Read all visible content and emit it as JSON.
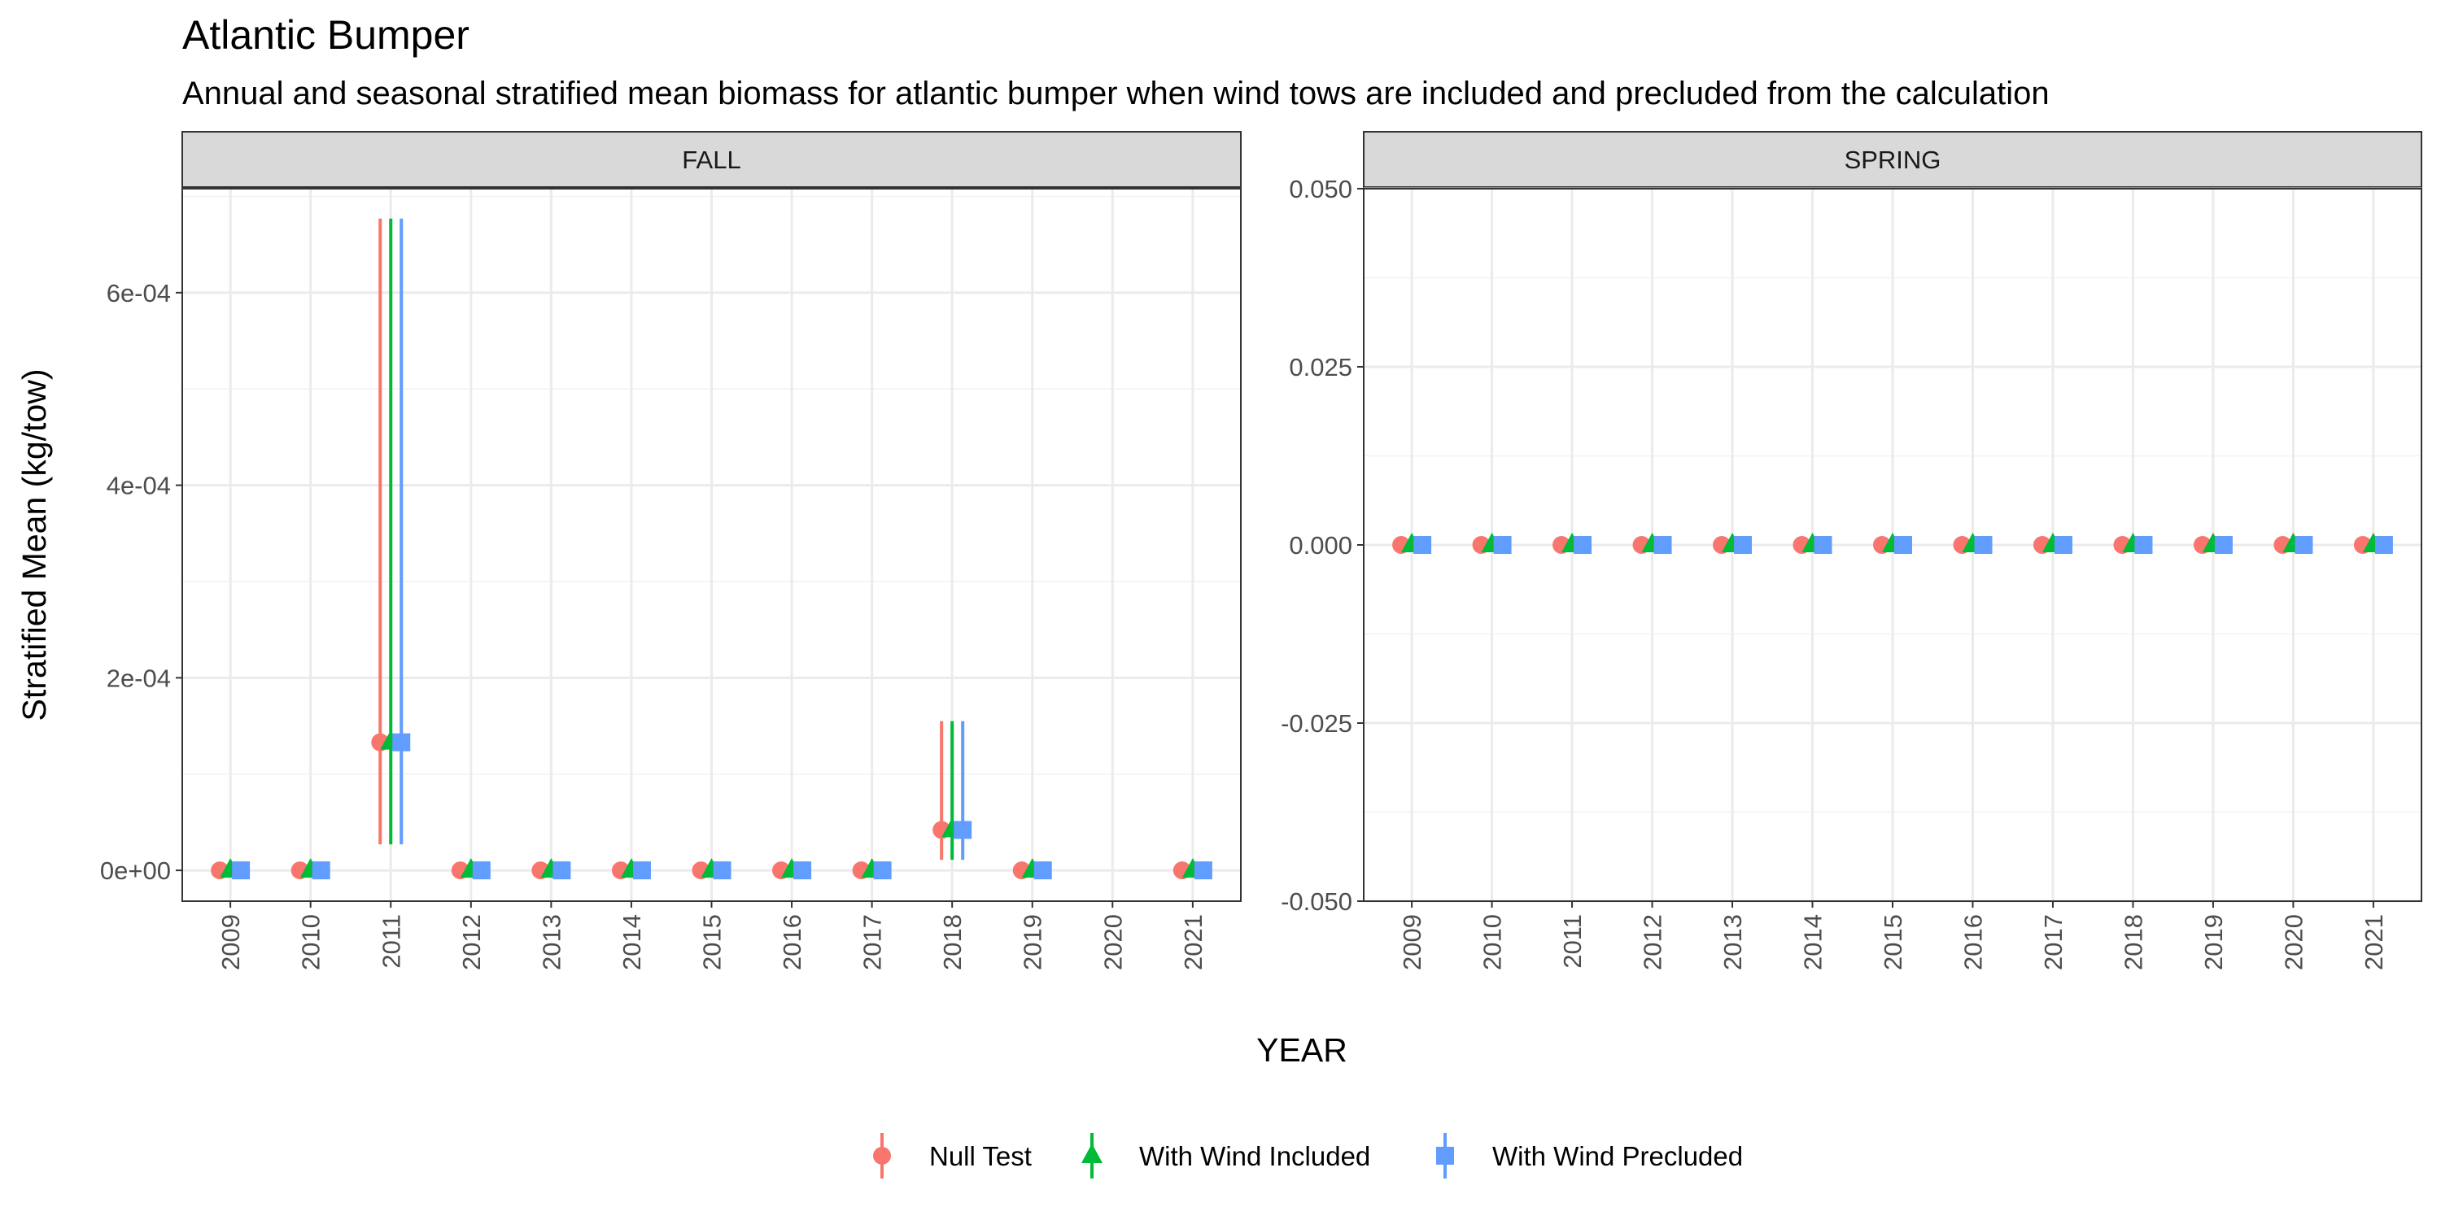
{
  "title": "Atlantic Bumper",
  "subtitle": "Annual and seasonal stratified mean biomass for atlantic bumper when wind tows are included and precluded from the calculation",
  "chart_data": {
    "type": "scatter",
    "xlabel": "YEAR",
    "ylabel": "Stratified Mean (kg/tow)",
    "categories": [
      "2009",
      "2010",
      "2011",
      "2012",
      "2013",
      "2014",
      "2015",
      "2016",
      "2017",
      "2018",
      "2019",
      "2020",
      "2021"
    ],
    "colors": {
      "Null Test": "#F8766D",
      "With Wind Included": "#00BA38",
      "With Wind Precluded": "#619CFF"
    },
    "legend": {
      "position": "bottom",
      "entries": [
        {
          "name": "Null Test",
          "shape": "circle"
        },
        {
          "name": "With Wind Included",
          "shape": "triangle"
        },
        {
          "name": "With Wind Precluded",
          "shape": "square"
        }
      ]
    },
    "grid": true,
    "error_bars": true,
    "facets": [
      {
        "label": "FALL",
        "ylim": [
          -3.2e-05,
          0.000708
        ],
        "yticks": [
          0,
          0.0002,
          0.0004,
          0.0006
        ],
        "ytick_labels": [
          "0e+00",
          "2e-04",
          "4e-04",
          "6e-04"
        ],
        "series": [
          {
            "name": "Null Test",
            "points": [
              {
                "x": "2009",
                "y": 0
              },
              {
                "x": "2010",
                "y": 0
              },
              {
                "x": "2011",
                "y": 0.000133,
                "lo": 2.7e-05,
                "hi": 0.000677
              },
              {
                "x": "2012",
                "y": 0
              },
              {
                "x": "2013",
                "y": 0
              },
              {
                "x": "2014",
                "y": 0
              },
              {
                "x": "2015",
                "y": 0
              },
              {
                "x": "2016",
                "y": 0
              },
              {
                "x": "2017",
                "y": 0
              },
              {
                "x": "2018",
                "y": 4.2e-05,
                "lo": 1.1e-05,
                "hi": 0.000155
              },
              {
                "x": "2019",
                "y": 0
              },
              {
                "x": "2021",
                "y": 0
              }
            ]
          },
          {
            "name": "With Wind Included",
            "points": [
              {
                "x": "2009",
                "y": 0
              },
              {
                "x": "2010",
                "y": 0
              },
              {
                "x": "2011",
                "y": 0.000133,
                "lo": 2.7e-05,
                "hi": 0.000677
              },
              {
                "x": "2012",
                "y": 0
              },
              {
                "x": "2013",
                "y": 0
              },
              {
                "x": "2014",
                "y": 0
              },
              {
                "x": "2015",
                "y": 0
              },
              {
                "x": "2016",
                "y": 0
              },
              {
                "x": "2017",
                "y": 0
              },
              {
                "x": "2018",
                "y": 4.2e-05,
                "lo": 1.1e-05,
                "hi": 0.000155
              },
              {
                "x": "2019",
                "y": 0
              },
              {
                "x": "2021",
                "y": 0
              }
            ]
          },
          {
            "name": "With Wind Precluded",
            "points": [
              {
                "x": "2009",
                "y": 0
              },
              {
                "x": "2010",
                "y": 0
              },
              {
                "x": "2011",
                "y": 0.000133,
                "lo": 2.7e-05,
                "hi": 0.000677
              },
              {
                "x": "2012",
                "y": 0
              },
              {
                "x": "2013",
                "y": 0
              },
              {
                "x": "2014",
                "y": 0
              },
              {
                "x": "2015",
                "y": 0
              },
              {
                "x": "2016",
                "y": 0
              },
              {
                "x": "2017",
                "y": 0
              },
              {
                "x": "2018",
                "y": 4.2e-05,
                "lo": 1.1e-05,
                "hi": 0.000155
              },
              {
                "x": "2019",
                "y": 0
              },
              {
                "x": "2021",
                "y": 0
              }
            ]
          }
        ]
      },
      {
        "label": "SPRING",
        "ylim": [
          -0.05,
          0.05
        ],
        "yticks": [
          -0.05,
          -0.025,
          0,
          0.025,
          0.05
        ],
        "ytick_labels": [
          "-0.050",
          "-0.025",
          "0.000",
          "0.025",
          "0.050"
        ],
        "series": [
          {
            "name": "Null Test",
            "points": [
              {
                "x": "2009",
                "y": 0
              },
              {
                "x": "2010",
                "y": 0
              },
              {
                "x": "2011",
                "y": 0
              },
              {
                "x": "2012",
                "y": 0
              },
              {
                "x": "2013",
                "y": 0
              },
              {
                "x": "2014",
                "y": 0
              },
              {
                "x": "2015",
                "y": 0
              },
              {
                "x": "2016",
                "y": 0
              },
              {
                "x": "2017",
                "y": 0
              },
              {
                "x": "2018",
                "y": 0
              },
              {
                "x": "2019",
                "y": 0
              },
              {
                "x": "2020",
                "y": 0
              },
              {
                "x": "2021",
                "y": 0
              }
            ]
          },
          {
            "name": "With Wind Included",
            "points": [
              {
                "x": "2009",
                "y": 0
              },
              {
                "x": "2010",
                "y": 0
              },
              {
                "x": "2011",
                "y": 0
              },
              {
                "x": "2012",
                "y": 0
              },
              {
                "x": "2013",
                "y": 0
              },
              {
                "x": "2014",
                "y": 0
              },
              {
                "x": "2015",
                "y": 0
              },
              {
                "x": "2016",
                "y": 0
              },
              {
                "x": "2017",
                "y": 0
              },
              {
                "x": "2018",
                "y": 0
              },
              {
                "x": "2019",
                "y": 0
              },
              {
                "x": "2020",
                "y": 0
              },
              {
                "x": "2021",
                "y": 0
              }
            ]
          },
          {
            "name": "With Wind Precluded",
            "points": [
              {
                "x": "2009",
                "y": 0
              },
              {
                "x": "2010",
                "y": 0
              },
              {
                "x": "2011",
                "y": 0
              },
              {
                "x": "2012",
                "y": 0
              },
              {
                "x": "2013",
                "y": 0
              },
              {
                "x": "2014",
                "y": 0
              },
              {
                "x": "2015",
                "y": 0
              },
              {
                "x": "2016",
                "y": 0
              },
              {
                "x": "2017",
                "y": 0
              },
              {
                "x": "2018",
                "y": 0
              },
              {
                "x": "2019",
                "y": 0
              },
              {
                "x": "2020",
                "y": 0
              },
              {
                "x": "2021",
                "y": 0
              }
            ]
          }
        ]
      }
    ]
  }
}
